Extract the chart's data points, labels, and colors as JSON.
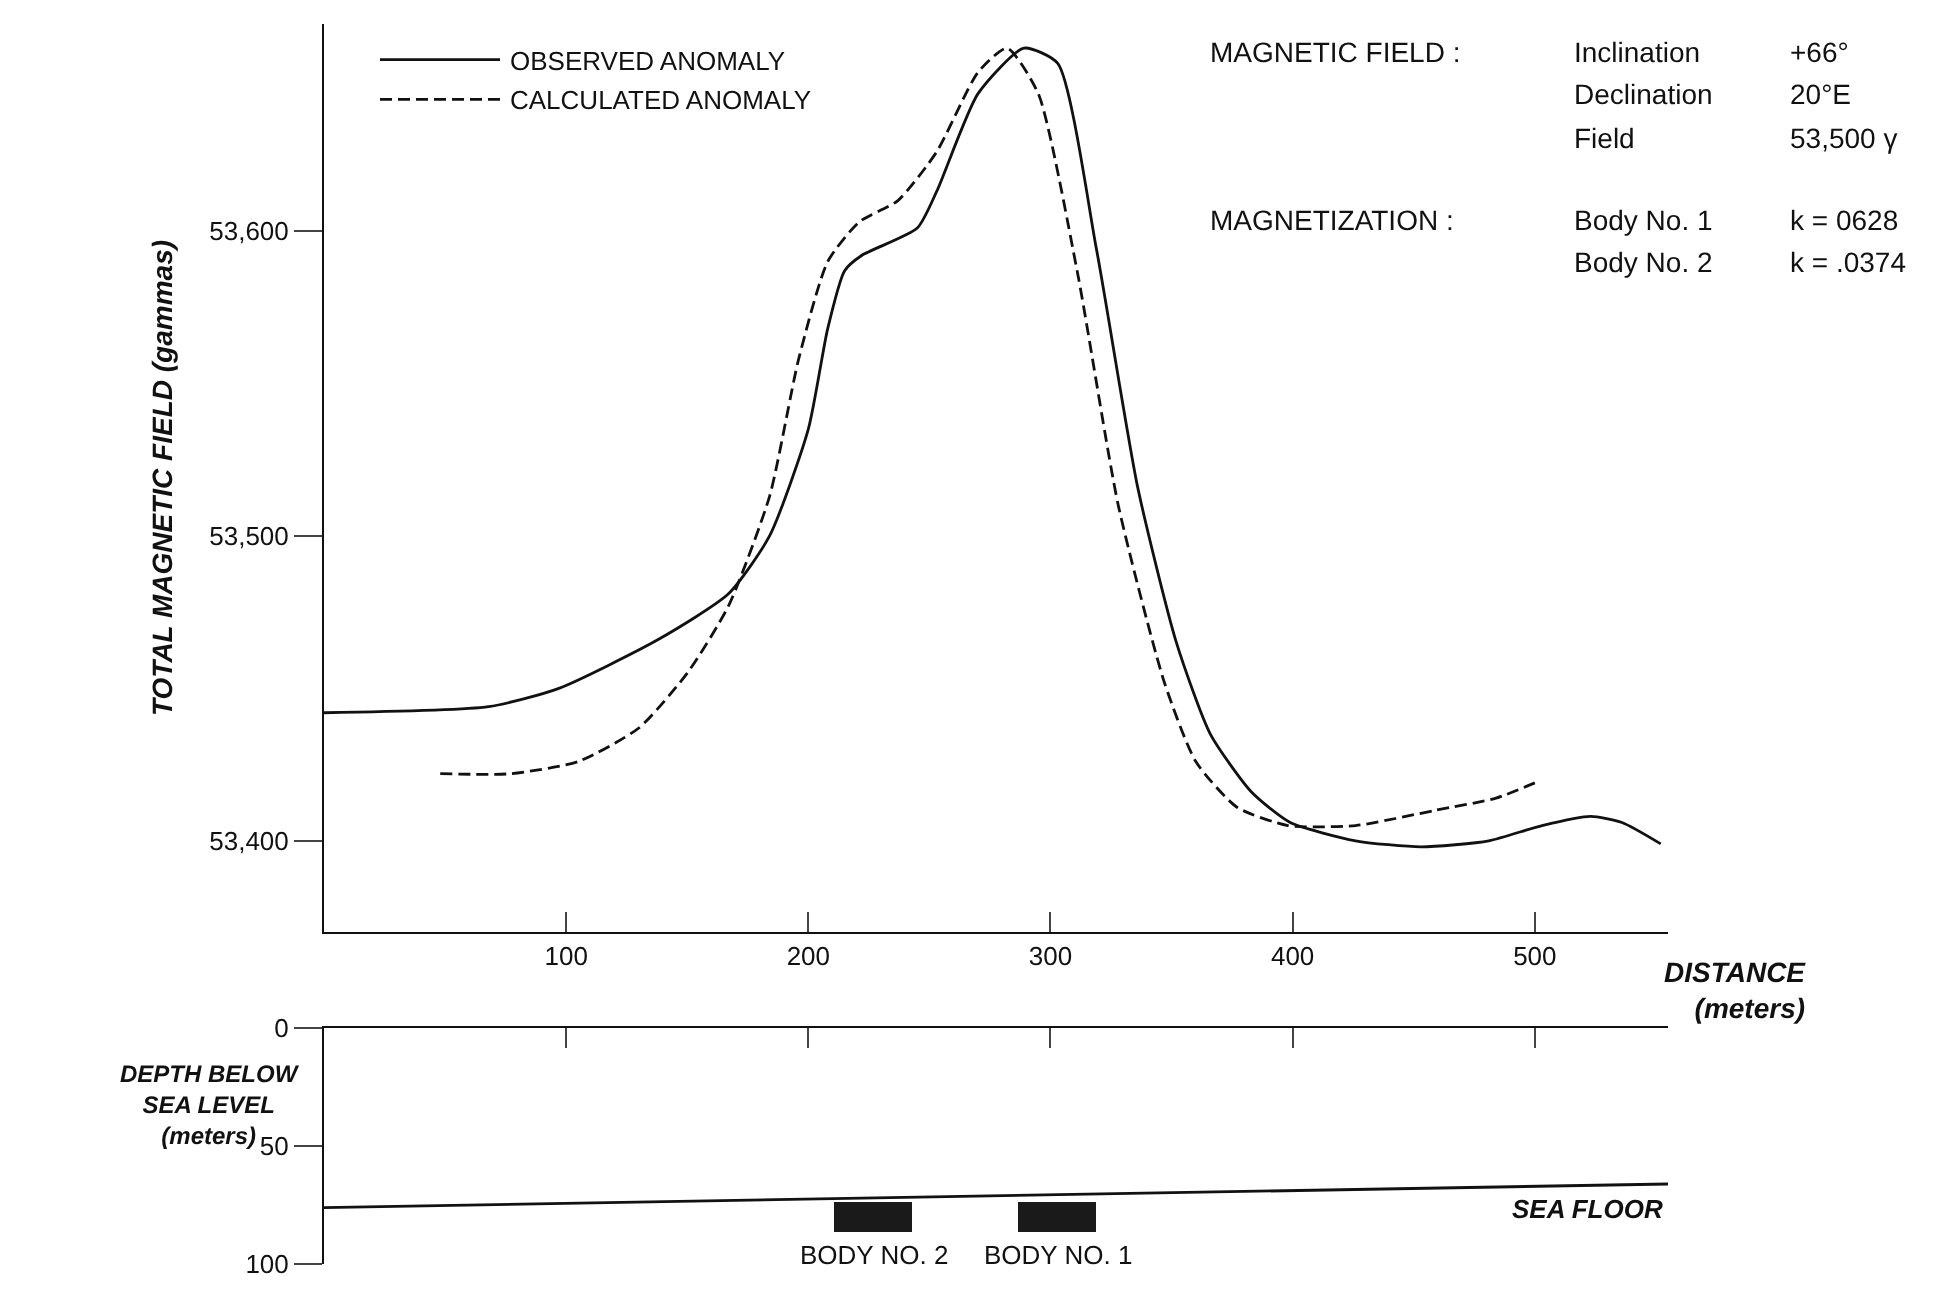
{
  "chart_data": [
    {
      "type": "line",
      "ylabel": "TOTAL MAGNETIC FIELD (gammas)",
      "xlabel": "DISTANCE\n(meters)",
      "xlim": [
        0,
        555
      ],
      "ylim": [
        53370,
        53668
      ],
      "xticks": [
        100,
        200,
        300,
        400,
        500
      ],
      "yticks": [
        {
          "value": 53400,
          "label": "53,400"
        },
        {
          "value": 53500,
          "label": "53,500"
        },
        {
          "value": 53600,
          "label": "53,600"
        }
      ],
      "legend": "top left",
      "marker": "none",
      "series": [
        {
          "name": "OBSERVED ANOMALY",
          "color": "#111111",
          "line_style": "solid",
          "x": [
            0,
            68,
            97,
            138,
            167,
            184,
            200,
            208,
            215,
            222,
            245,
            253,
            270,
            289,
            303,
            319,
            336,
            352,
            366,
            383,
            399,
            426,
            453,
            481,
            503,
            523,
            536,
            552
          ],
          "values": [
            53442,
            53444,
            53450,
            53466,
            53481,
            53500,
            53535,
            53568,
            53587,
            53592,
            53601,
            53613,
            53645,
            53660,
            53655,
            53594,
            53516,
            53465,
            53435,
            53416,
            53406,
            53400,
            53398,
            53400,
            53405,
            53408,
            53406,
            53399
          ]
        },
        {
          "name": "CALCULATED ANOMALY",
          "color": "#111111",
          "line_style": "dashed",
          "x": [
            48,
            77,
            105,
            130,
            150,
            167,
            184,
            196,
            208,
            221,
            237,
            253,
            270,
            282,
            295,
            311,
            328,
            347,
            360,
            377,
            398,
            426,
            459,
            484,
            500
          ],
          "values": [
            53422,
            53422,
            53426,
            53437,
            53455,
            53477,
            53513,
            53558,
            53590,
            53603,
            53610,
            53626,
            53652,
            53660,
            53645,
            53587,
            53510,
            53452,
            53426,
            53411,
            53405,
            53405,
            53410,
            53414,
            53419
          ]
        }
      ],
      "annotations": [
        "MAGNETIC FIELD :",
        "Inclination",
        "+66°",
        "Declination",
        "20°E",
        "Field",
        "53,500 γ",
        "MAGNETIZATION :",
        "Body No. 1",
        "k = 0628",
        "Body No. 2",
        "k = .0374"
      ]
    },
    {
      "type": "line",
      "ylabel": "DEPTH BELOW\nSEA LEVEL\n(meters)",
      "xlim": [
        0,
        555
      ],
      "ylim": [
        100,
        0
      ],
      "xticks": [
        {
          "value": 100,
          "label": null
        },
        {
          "value": 200,
          "label": null
        },
        {
          "value": 300,
          "label": null
        },
        {
          "value": 400,
          "label": null
        },
        {
          "value": 500,
          "label": null
        }
      ],
      "yticks": [
        0,
        50,
        100
      ],
      "tick_labels": "y",
      "legend": false,
      "series": [
        {
          "name": "SEA FLOOR",
          "color": "#111111",
          "x": [
            0,
            555
          ],
          "values": [
            76,
            66
          ]
        },
        {
          "type": "bar",
          "color": "#1a1a1a",
          "x": [
            227,
            303
          ],
          "base": [
            74,
            74
          ],
          "values": [
            12,
            12
          ]
        }
      ],
      "annotations": [
        "BODY NO. 2",
        "BODY NO. 1"
      ]
    }
  ]
}
